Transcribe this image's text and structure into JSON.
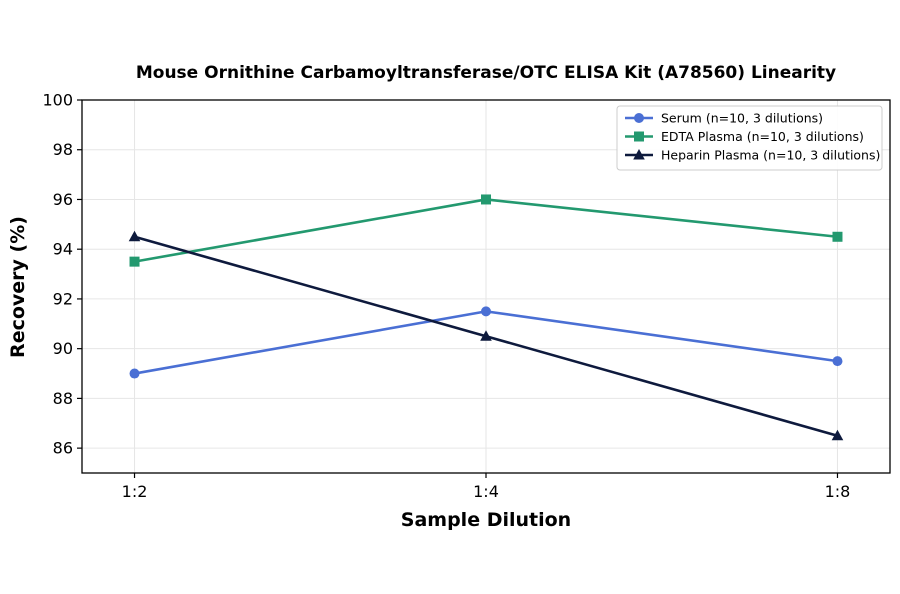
{
  "chart_data": {
    "type": "line",
    "title": "Mouse Ornithine Carbamoyltransferase/OTC ELISA Kit (A78560) Linearity",
    "xlabel": "Sample Dilution",
    "ylabel": "Recovery (%)",
    "categories": [
      "1:2",
      "1:4",
      "1:8"
    ],
    "ylim": [
      85,
      100
    ],
    "yticks": [
      86,
      88,
      90,
      92,
      94,
      96,
      98,
      100
    ],
    "grid": true,
    "legend_position": "top-right",
    "series": [
      {
        "name": "Serum (n=10, 3 dilutions)",
        "values": [
          89.0,
          91.5,
          89.5
        ],
        "color": "#4a6fd4",
        "marker": "circle"
      },
      {
        "name": "EDTA Plasma (n=10, 3 dilutions)",
        "values": [
          93.5,
          96.0,
          94.5
        ],
        "color": "#23996f",
        "marker": "square"
      },
      {
        "name": "Heparin Plasma (n=10, 3 dilutions)",
        "values": [
          94.5,
          90.5,
          86.5
        ],
        "color": "#0e1a3d",
        "marker": "triangle"
      }
    ]
  }
}
